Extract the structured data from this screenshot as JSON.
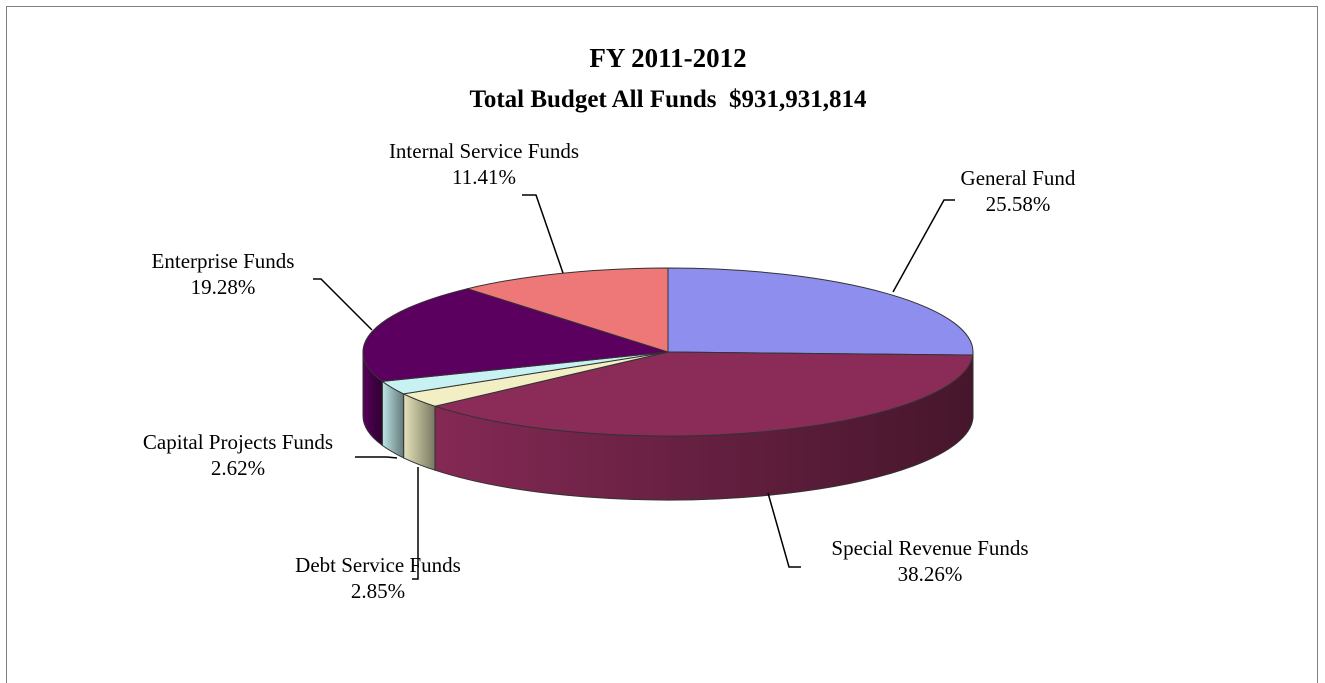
{
  "chart_data": {
    "type": "pie",
    "title": "FY 2011-2012",
    "subtitle": "Total Budget All Funds  $931,931,814",
    "slices": [
      {
        "label": "General Fund",
        "value": 25.58,
        "display": "25.58%",
        "color": "#8e8eee"
      },
      {
        "label": "Special Revenue Funds",
        "value": 38.26,
        "display": "38.26%",
        "color": "#8b2b58"
      },
      {
        "label": "Debt Service Funds",
        "value": 2.85,
        "display": "2.85%",
        "color": "#f2efc4"
      },
      {
        "label": "Capital Projects Funds",
        "value": 2.62,
        "display": "2.62%",
        "color": "#c7f1f2"
      },
      {
        "label": "Enterprise Funds",
        "value": 19.28,
        "display": "19.28%",
        "color": "#5c0060"
      },
      {
        "label": "Internal Service Funds",
        "value": 11.41,
        "display": "11.41%",
        "color": "#ee7777"
      }
    ]
  }
}
